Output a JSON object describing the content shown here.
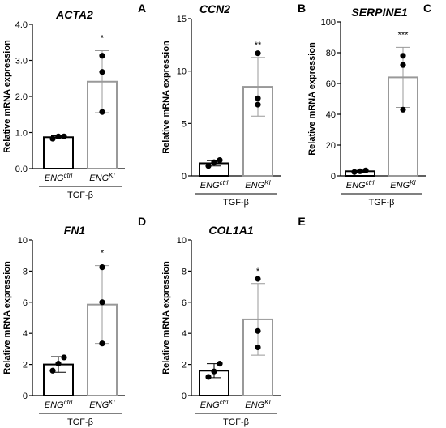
{
  "chart_data": [
    {
      "type": "bar",
      "letter": "A",
      "title": "ACTA2",
      "ylabel": "Relative mRNA expression",
      "ylim": [
        0,
        4
      ],
      "yticks": [
        "0.0",
        "1.0",
        "2.0",
        "3.0",
        "4.0"
      ],
      "ytick_values": [
        0,
        1,
        2,
        3,
        4
      ],
      "categories": [
        {
          "base": "ENG",
          "sup": "ctrl"
        },
        {
          "base": "ENG",
          "sup": "KI"
        }
      ],
      "treatment": "TGF-β",
      "values": [
        0.87,
        2.41
      ],
      "sd": [
        0.04,
        0.86
      ],
      "points": [
        [
          0.83,
          0.89,
          0.89
        ],
        [
          1.57,
          2.68,
          3.13
        ]
      ],
      "significance": [
        "",
        "*"
      ]
    },
    {
      "type": "bar",
      "letter": "B",
      "title": "CCN2",
      "ylabel": "Relative mRNA expression",
      "ylim": [
        0,
        15
      ],
      "yticks": [
        "0",
        "5",
        "10",
        "15"
      ],
      "ytick_values": [
        0,
        5,
        10,
        15
      ],
      "categories": [
        {
          "base": "ENG",
          "sup": "ctrl"
        },
        {
          "base": "ENG",
          "sup": "KI"
        }
      ],
      "treatment": "TGF-β",
      "values": [
        1.2,
        8.5
      ],
      "sd": [
        0.25,
        2.8
      ],
      "points": [
        [
          0.95,
          1.3,
          1.5
        ],
        [
          6.8,
          7.4,
          11.7
        ]
      ],
      "significance": [
        "",
        "**"
      ]
    },
    {
      "type": "bar",
      "letter": "C",
      "title": "SERPINE1",
      "ylabel": "Relative mRNA expression",
      "ylim": [
        0,
        100
      ],
      "yticks": [
        "0",
        "20",
        "40",
        "60",
        "80",
        "100"
      ],
      "ytick_values": [
        0,
        20,
        40,
        60,
        80,
        100
      ],
      "categories": [
        {
          "base": "ENG",
          "sup": "ctrl"
        },
        {
          "base": "ENG",
          "sup": "KI"
        }
      ],
      "treatment": "TGF-β",
      "values": [
        3.0,
        64.0
      ],
      "sd": [
        0.6,
        19.5
      ],
      "points": [
        [
          2.5,
          3.0,
          3.5
        ],
        [
          43.0,
          72.0,
          78.0
        ]
      ],
      "significance": [
        "",
        "***"
      ]
    },
    {
      "type": "bar",
      "letter": "D",
      "title": "FN1",
      "ylabel": "Relative mRNA expression",
      "ylim": [
        0,
        10
      ],
      "yticks": [
        "0",
        "2",
        "4",
        "6",
        "8",
        "10"
      ],
      "ytick_values": [
        0,
        2,
        4,
        6,
        8,
        10
      ],
      "categories": [
        {
          "base": "ENG",
          "sup": "ctrl"
        },
        {
          "base": "ENG",
          "sup": "KI"
        }
      ],
      "treatment": "TGF-β",
      "values": [
        2.0,
        5.85
      ],
      "sd": [
        0.5,
        2.5
      ],
      "points": [
        [
          1.6,
          2.05,
          2.45
        ],
        [
          3.35,
          6.0,
          8.25
        ]
      ],
      "significance": [
        "",
        "*"
      ]
    },
    {
      "type": "bar",
      "letter": "E",
      "title": "COL1A1",
      "ylabel": "Relative mRNA expression",
      "ylim": [
        0,
        10
      ],
      "yticks": [
        "0",
        "2",
        "4",
        "6",
        "8",
        "10"
      ],
      "ytick_values": [
        0,
        2,
        4,
        6,
        8,
        10
      ],
      "categories": [
        {
          "base": "ENG",
          "sup": "ctrl"
        },
        {
          "base": "ENG",
          "sup": "KI"
        }
      ],
      "treatment": "TGF-β",
      "values": [
        1.6,
        4.9
      ],
      "sd": [
        0.45,
        2.3
      ],
      "points": [
        [
          1.2,
          1.55,
          2.05
        ],
        [
          3.1,
          4.15,
          7.5
        ]
      ],
      "significance": [
        "",
        "*"
      ]
    }
  ]
}
